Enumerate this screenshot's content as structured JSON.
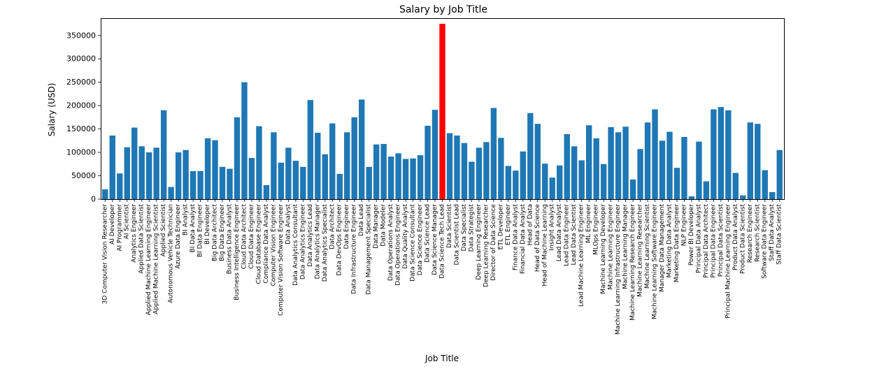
{
  "chart_data": {
    "type": "bar",
    "title": "Salary by Job Title",
    "xlabel": "Job Title",
    "ylabel": "Salary (USD)",
    "ylim": [
      0,
      375000
    ],
    "yticks": [
      0,
      50000,
      100000,
      150000,
      200000,
      250000,
      300000,
      350000
    ],
    "grid": false,
    "colors": {
      "default": "#1f77b4",
      "highlight": "#ff0000"
    },
    "highlight_category": "Data Science Tech Lead",
    "categories": [
      "3D Computer Vision Researcher",
      "AI Developer",
      "AI Programmer",
      "AI Scientist",
      "Analytics Engineer",
      "Applied Data Scientist",
      "Applied Machine Learning Engineer",
      "Applied Machine Learning Scientist",
      "Applied Scientist",
      "Autonomous Vehicle Technician",
      "Azure Data Engineer",
      "BI Analyst",
      "BI Data Analyst",
      "BI Data Engineer",
      "BI Developer",
      "Big Data Architect",
      "Big Data Engineer",
      "Business Data Analyst",
      "Business Intelligence Engineer",
      "Cloud Data Architect",
      "Cloud Data Engineer",
      "Cloud Database Engineer",
      "Compliance Data Analyst",
      "Computer Vision Engineer",
      "Computer Vision Software Engineer",
      "Data Analyst",
      "Data Analytics Consultant",
      "Data Analytics Engineer",
      "Data Analytics Lead",
      "Data Analytics Manager",
      "Data Analytics Specialist",
      "Data Architect",
      "Data DevOps Engineer",
      "Data Engineer",
      "Data Infrastructure Engineer",
      "Data Lead",
      "Data Management Specialist",
      "Data Manager",
      "Data Modeler",
      "Data Operations Analyst",
      "Data Operations Engineer",
      "Data Quality Analyst",
      "Data Science Consultant",
      "Data Science Engineer",
      "Data Science Lead",
      "Data Science Manager",
      "Data Science Tech Lead",
      "Data Scientist",
      "Data Scientist Lead",
      "Data Specialist",
      "Data Strategist",
      "Deep Learning Engineer",
      "Deep Learning Researcher",
      "Director of Data Science",
      "ETL Developer",
      "ETL Engineer",
      "Finance Data Analyst",
      "Financial Data Analyst",
      "Head of Data",
      "Head of Data Science",
      "Head of Machine Learning",
      "Insight Analyst",
      "Lead Data Analyst",
      "Lead Data Engineer",
      "Lead Data Scientist",
      "Lead Machine Learning Engineer",
      "ML Engineer",
      "MLOps Engineer",
      "Machine Learning Developer",
      "Machine Learning Engineer",
      "Machine Learning Infrastructure Engineer",
      "Machine Learning Manager",
      "Machine Learning Research Engineer",
      "Machine Learning Researcher",
      "Machine Learning Scientist",
      "Machine Learning Software Engineer",
      "Manager Data Management",
      "Marketing Data Analyst",
      "Marketing Data Engineer",
      "NLP Engineer",
      "Power BI Developer",
      "Principal Data Analyst",
      "Principal Data Architect",
      "Principal Data Engineer",
      "Principal Data Scientist",
      "Principal Machine Learning Engineer",
      "Product Data Analyst",
      "Product Data Scientist",
      "Research Engineer",
      "Research Scientist",
      "Software Data Engineer",
      "Staff Data Analyst",
      "Staff Data Scientist"
    ],
    "values": [
      21000,
      136000,
      55000,
      111000,
      153000,
      113000,
      100000,
      110000,
      190000,
      26000,
      100000,
      105000,
      60000,
      60000,
      130000,
      126000,
      69000,
      65000,
      175000,
      250000,
      88000,
      156000,
      30000,
      143000,
      78000,
      110000,
      82000,
      69000,
      212000,
      142000,
      96000,
      162000,
      54000,
      143000,
      175000,
      213000,
      69000,
      117000,
      118000,
      91000,
      98000,
      86000,
      87000,
      94000,
      157000,
      191000,
      375000,
      141000,
      136000,
      120000,
      80000,
      110000,
      122000,
      195000,
      131000,
      71000,
      61000,
      102000,
      184000,
      161000,
      76000,
      46000,
      72000,
      139000,
      113000,
      83000,
      158000,
      130000,
      75000,
      154000,
      143000,
      155000,
      42000,
      107000,
      164000,
      192000,
      125000,
      144000,
      67000,
      133000,
      6000,
      123000,
      38000,
      192000,
      197000,
      190000,
      56000,
      8000,
      164000,
      161000,
      62000,
      15000,
      105000
    ]
  }
}
